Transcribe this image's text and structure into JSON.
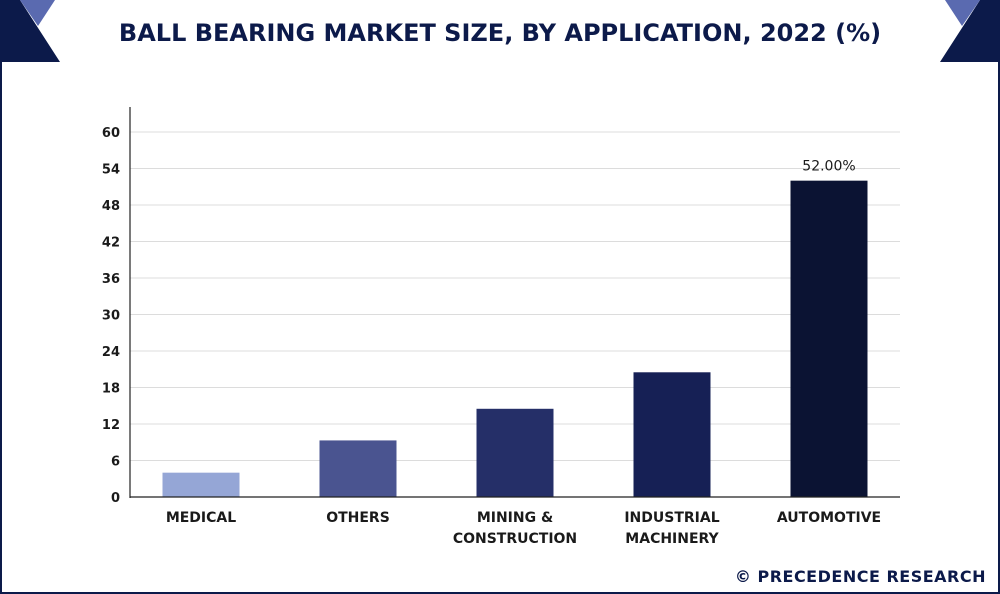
{
  "header": {
    "title": "BALL BEARING MARKET SIZE, BY APPLICATION, 2022 (%)"
  },
  "source": "© PRECEDENCE RESEARCH",
  "colors": {
    "frame": "#0c1a4a",
    "header_band": "#0c1a4a",
    "corner_accent": "#5a6ab0"
  },
  "chart_data": {
    "type": "bar",
    "title": "BALL BEARING MARKET SIZE, BY APPLICATION, 2022 (%)",
    "categories": [
      [
        "MEDICAL"
      ],
      [
        "OTHERS"
      ],
      [
        "MINING &",
        "CONSTRUCTION"
      ],
      [
        "INDUSTRIAL",
        "MACHINERY"
      ],
      [
        "AUTOMOTIVE"
      ]
    ],
    "values": [
      4,
      9.3,
      14.5,
      20.5,
      52
    ],
    "colors": [
      "#95a6d6",
      "#4a5490",
      "#252f68",
      "#162055",
      "#0b1333"
    ],
    "data_labels": [
      "",
      "",
      "",
      "",
      "52.00%"
    ],
    "yticks": [
      "0",
      "6",
      "12",
      "18",
      "24",
      "30",
      "36",
      "42",
      "48",
      "54",
      "60"
    ],
    "ylim": [
      0,
      60
    ],
    "grid": true,
    "xlabel": "",
    "ylabel": ""
  }
}
